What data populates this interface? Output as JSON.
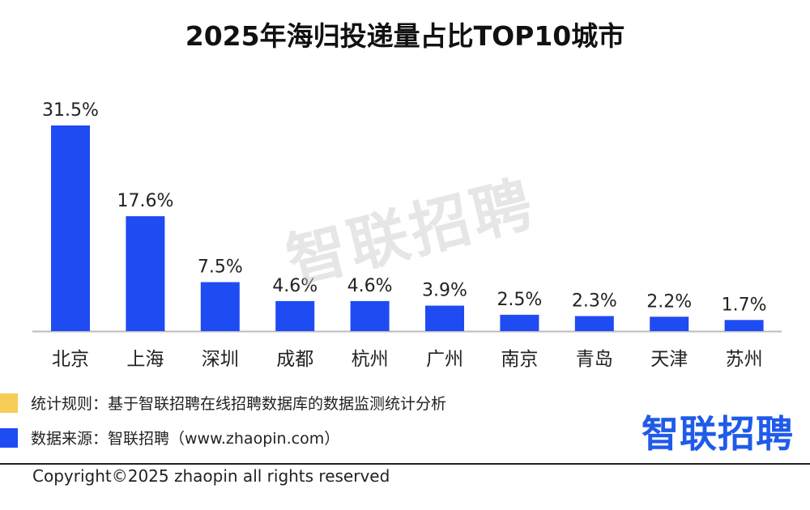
{
  "chart_data": {
    "type": "bar",
    "title": "2025年海归投递量占比TOP10城市",
    "categories": [
      "北京",
      "上海",
      "深圳",
      "成都",
      "杭州",
      "广州",
      "南京",
      "青岛",
      "天津",
      "苏州"
    ],
    "values": [
      31.5,
      17.6,
      7.5,
      4.6,
      4.6,
      3.9,
      2.5,
      2.3,
      2.2,
      1.7
    ],
    "value_labels": [
      "31.5%",
      "17.6%",
      "7.5%",
      "4.6%",
      "4.6%",
      "3.9%",
      "2.5%",
      "2.3%",
      "2.2%",
      "1.7%"
    ],
    "unit": "%",
    "ylim": [
      0,
      31.5
    ],
    "xlabel": "",
    "ylabel": "",
    "bar_color": "#1f4bf2",
    "axis_color": "#bbbbbb"
  },
  "watermark": "智联招聘",
  "footnotes": {
    "rule": "统计规则：基于智联招聘在线招聘数据库的数据监测统计分析",
    "source": "数据来源：智联招聘（www.zhaopin.com）",
    "rule_swatch_color": "#f7cd57",
    "source_swatch_color": "#1f4bf2"
  },
  "logo_text": "智联招聘",
  "copyright": "Copyright©2025 zhaopin all rights reserved"
}
